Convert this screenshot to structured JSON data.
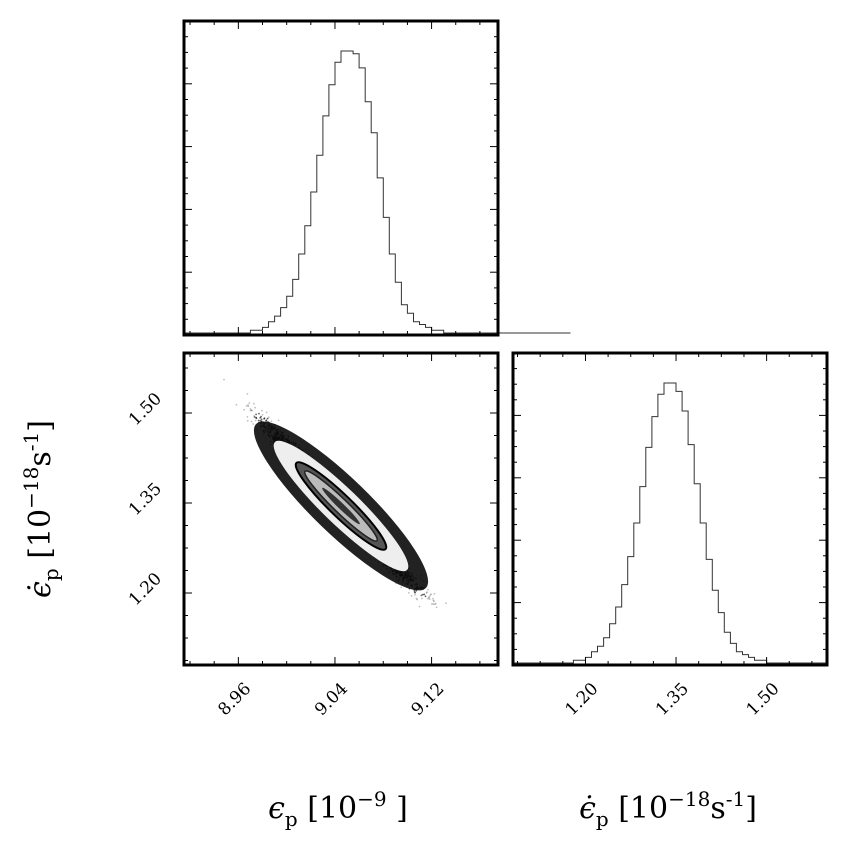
{
  "chart_data": [
    {
      "type": "histogram",
      "panel": "eps-marginal",
      "bin_edges_start": 8.915,
      "bin_width": 0.005,
      "counts": [
        0,
        0,
        0,
        0,
        0,
        0,
        0,
        0,
        0,
        0,
        0,
        1,
        1,
        2,
        4,
        6,
        9,
        13,
        19,
        28,
        38,
        50,
        63,
        77,
        88,
        96,
        100,
        100,
        99,
        94,
        82,
        71,
        55,
        41,
        28,
        18,
        10,
        7,
        4,
        3,
        2,
        1,
        1,
        0,
        0,
        0,
        0,
        0,
        0,
        0,
        0,
        0,
        0,
        0,
        0,
        0,
        0,
        0,
        0,
        0,
        0,
        0,
        0,
        0
      ],
      "x_range": [
        8.915,
        9.175
      ],
      "x_ticks": [
        "8.96",
        "9.04",
        "9.12"
      ]
    },
    {
      "type": "scatter",
      "panel": "joint",
      "x_range": [
        8.915,
        9.175
      ],
      "y_range": [
        1.08,
        1.6
      ],
      "x_ticks": [
        "8.96",
        "9.04",
        "9.12"
      ],
      "y_ticks": [
        "1.20",
        "1.35",
        "1.50"
      ],
      "center": [
        9.045,
        1.345
      ],
      "sigma_x": 0.024,
      "sigma_y": 0.052,
      "correlation": -0.98,
      "xlabel": "ε_p [10^-9 ]",
      "ylabel": "ε̇_p [10^-18 s^-1]"
    },
    {
      "type": "histogram",
      "panel": "epsdot-marginal",
      "bin_edges_start": 1.08,
      "bin_width": 0.01,
      "counts": [
        0,
        0,
        0,
        0,
        0,
        0,
        0,
        0,
        0,
        0,
        1,
        1,
        2,
        4,
        6,
        9,
        14,
        20,
        28,
        38,
        50,
        63,
        77,
        88,
        96,
        100,
        100,
        97,
        90,
        78,
        64,
        50,
        37,
        26,
        18,
        11,
        7,
        4,
        3,
        2,
        1,
        1,
        0,
        0,
        0,
        0,
        0,
        0,
        0,
        0,
        0,
        0
      ],
      "x_range": [
        1.08,
        1.6
      ],
      "x_ticks": [
        "1.20",
        "1.35",
        "1.50"
      ],
      "xlabel": "ε̇_p [10^-18 s^-1]"
    }
  ]
}
